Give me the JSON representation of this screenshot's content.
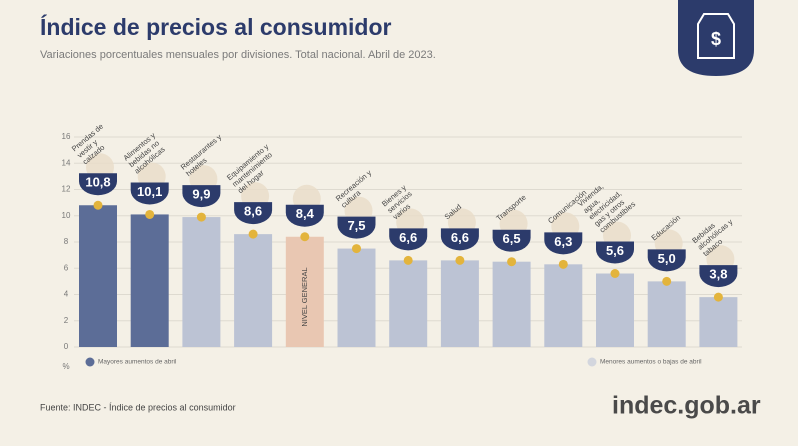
{
  "chart_data": {
    "type": "bar",
    "title": "Índice de precios al consumidor",
    "subtitle": "Variaciones porcentuales mensuales por divisiones. Total nacional. Abril de 2023.",
    "categories": [
      "Prendas de vestir y calzado",
      "Alimentos y bebidas no alcohólicas",
      "Restaurantes y hoteles",
      "Equipamiento y mantenimiento del hogar",
      "NIVEL GENERAL",
      "Recreación y cultura",
      "Bienes y servicios varios",
      "Salud",
      "Transporte",
      "Comunicación",
      "Vivienda, agua, electricidad, gas y otros combustibles",
      "Educación",
      "Bebidas alcohólicas y tabaco"
    ],
    "values": [
      10.8,
      10.1,
      9.9,
      8.6,
      8.4,
      7.5,
      6.6,
      6.6,
      6.5,
      6.3,
      5.6,
      5.0,
      3.8
    ],
    "value_labels": [
      "10,8",
      "10,1",
      "9,9",
      "8,6",
      "8,4",
      "7,5",
      "6,6",
      "6,6",
      "6,5",
      "6,3",
      "5,6",
      "5,0",
      "3,8"
    ],
    "colors": [
      "#5c6d97",
      "#5c6d97",
      "#bcc3d4",
      "#bcc3d4",
      "#e9c7b2",
      "#bcc3d4",
      "#bcc3d4",
      "#bcc3d4",
      "#bcc3d4",
      "#bcc3d4",
      "#bcc3d4",
      "#bcc3d4",
      "#bcc3d4"
    ],
    "ylim": [
      0,
      16
    ],
    "yticks": [
      0,
      2,
      4,
      6,
      8,
      10,
      12,
      14,
      16
    ],
    "grid": true,
    "y_unit": "%",
    "legend": [
      {
        "label": "Mayores aumentos de abril",
        "color": "#5c6d97"
      },
      {
        "label": "Menores aumentos o bajas de abril",
        "color": "#d3d6de"
      }
    ],
    "source": "Fuente: INDEC - Índice de precios al consumidor",
    "logo": "indec.gob.ar"
  }
}
